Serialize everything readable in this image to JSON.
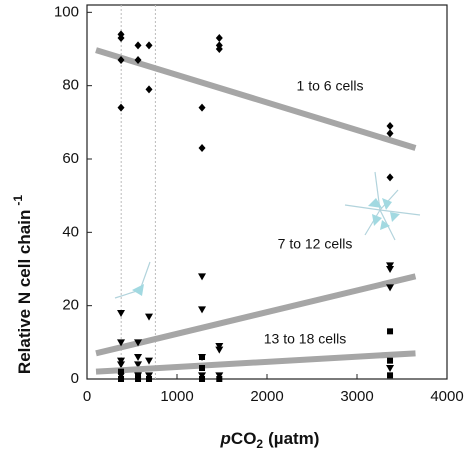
{
  "chart_data": {
    "type": "scatter",
    "x_label_parts": [
      "p",
      "CO",
      "2",
      "(µatm)"
    ],
    "y_label": "Relative N cell chain",
    "y_label_sup": "-1",
    "xlim": [
      0,
      4000
    ],
    "xticks": [
      0,
      1000,
      2000,
      3000,
      4000
    ],
    "ylim": [
      0,
      102
    ],
    "yticks": [
      0,
      20,
      40,
      60,
      80,
      100
    ],
    "vlines": [
      380,
      760
    ],
    "vline_color": "#bbbbbb",
    "trend_color": "#a6a6a6",
    "series": [
      {
        "name": "1 to 6 cells",
        "marker": "diamond",
        "color": "#000000",
        "x": [
          378,
          378,
          378,
          378,
          567,
          567,
          689,
          689,
          1278,
          1278,
          1470,
          1470,
          1470,
          3367,
          3367,
          3367
        ],
        "values": [
          94,
          93,
          87,
          74,
          91,
          87,
          91,
          79,
          74,
          63,
          93,
          91,
          90,
          69,
          67,
          55
        ],
        "trend_x": [
          100,
          3650
        ],
        "trend_y": [
          89.7,
          63
        ]
      },
      {
        "name": "7 to 12 cells",
        "marker": "triangle",
        "color": "#000000",
        "x": [
          378,
          378,
          378,
          378,
          378,
          567,
          567,
          567,
          567,
          689,
          689,
          689,
          1278,
          1278,
          1278,
          1278,
          1470,
          1470,
          1470,
          3367,
          3367,
          3367,
          3367
        ],
        "values": [
          18,
          10,
          5,
          4,
          1,
          10,
          6,
          4,
          1,
          17,
          5,
          1,
          28,
          19,
          6,
          1,
          9,
          8,
          1,
          31,
          30,
          25,
          3
        ],
        "trend_x": [
          100,
          3650
        ],
        "trend_y": [
          7,
          28
        ]
      },
      {
        "name": "13 to 18 cells",
        "marker": "square",
        "color": "#000000",
        "x": [
          378,
          378,
          567,
          567,
          689,
          1278,
          1278,
          1278,
          1470,
          3367,
          3367,
          3367
        ],
        "values": [
          2,
          0,
          1,
          0,
          0,
          6,
          3,
          0,
          0,
          13,
          5,
          1
        ],
        "trend_x": [
          100,
          3650
        ],
        "trend_y": [
          2,
          7
        ]
      }
    ]
  }
}
